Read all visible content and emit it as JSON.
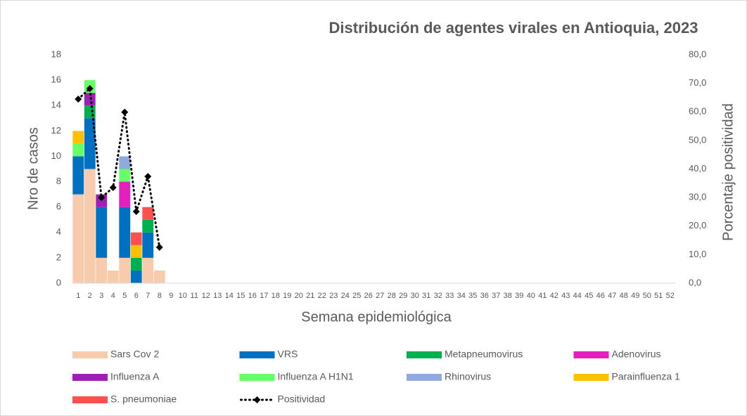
{
  "chart_data": {
    "type": "bar",
    "stacked": true,
    "title": "Distribución de agentes virales en Antioquia, 2023",
    "x_label": "Semana epidemiológica",
    "y_label": "Nro de casos",
    "y2_label": "Porcentaje positividad",
    "categories": [
      "1",
      "2",
      "3",
      "4",
      "5",
      "6",
      "7",
      "8",
      "9",
      "10",
      "11",
      "12",
      "13",
      "14",
      "15",
      "16",
      "17",
      "18",
      "19",
      "20",
      "21",
      "22",
      "23",
      "24",
      "25",
      "26",
      "27",
      "28",
      "29",
      "30",
      "31",
      "32",
      "33",
      "34",
      "35",
      "36",
      "37",
      "38",
      "39",
      "40",
      "41",
      "42",
      "43",
      "44",
      "45",
      "46",
      "47",
      "48",
      "49",
      "50",
      "51",
      "52"
    ],
    "ylim": [
      0,
      18
    ],
    "yticks": [
      0,
      2,
      4,
      6,
      8,
      10,
      12,
      14,
      16,
      18
    ],
    "y2lim": [
      0,
      80
    ],
    "y2ticks": [
      {
        "value": 0,
        "label": "0,0"
      },
      {
        "value": 10,
        "label": "10,0"
      },
      {
        "value": 20,
        "label": "20,0"
      },
      {
        "value": 30,
        "label": "30,0"
      },
      {
        "value": 40,
        "label": "40,0"
      },
      {
        "value": 50,
        "label": "50,0"
      },
      {
        "value": 60,
        "label": "60,0"
      },
      {
        "value": 70,
        "label": "70,0"
      },
      {
        "value": 80,
        "label": "80,0"
      }
    ],
    "grid": false,
    "series": [
      {
        "name": "Sars Cov 2",
        "color": "#f8cbad",
        "values": [
          7,
          9,
          2,
          1,
          2,
          0,
          2,
          1,
          null,
          null,
          null,
          null,
          null,
          null,
          null,
          null,
          null,
          null,
          null,
          null,
          null,
          null,
          null,
          null,
          null,
          null,
          null,
          null,
          null,
          null,
          null,
          null,
          null,
          null,
          null,
          null,
          null,
          null,
          null,
          null,
          null,
          null,
          null,
          null,
          null,
          null,
          null,
          null,
          null,
          null,
          null,
          null
        ]
      },
      {
        "name": "VRS",
        "color": "#0070c0",
        "values": [
          3,
          4,
          4,
          0,
          4,
          1,
          2,
          0,
          null,
          null,
          null,
          null,
          null,
          null,
          null,
          null,
          null,
          null,
          null,
          null,
          null,
          null,
          null,
          null,
          null,
          null,
          null,
          null,
          null,
          null,
          null,
          null,
          null,
          null,
          null,
          null,
          null,
          null,
          null,
          null,
          null,
          null,
          null,
          null,
          null,
          null,
          null,
          null,
          null,
          null,
          null,
          null
        ]
      },
      {
        "name": "Metapneumovirus",
        "color": "#00b050",
        "values": [
          0,
          1,
          0,
          0,
          0,
          1,
          1,
          0,
          null,
          null,
          null,
          null,
          null,
          null,
          null,
          null,
          null,
          null,
          null,
          null,
          null,
          null,
          null,
          null,
          null,
          null,
          null,
          null,
          null,
          null,
          null,
          null,
          null,
          null,
          null,
          null,
          null,
          null,
          null,
          null,
          null,
          null,
          null,
          null,
          null,
          null,
          null,
          null,
          null,
          null,
          null,
          null
        ]
      },
      {
        "name": "Adenovirus",
        "color": "#e41fbf",
        "values": [
          0,
          0,
          0,
          0,
          2,
          0,
          0,
          0,
          null,
          null,
          null,
          null,
          null,
          null,
          null,
          null,
          null,
          null,
          null,
          null,
          null,
          null,
          null,
          null,
          null,
          null,
          null,
          null,
          null,
          null,
          null,
          null,
          null,
          null,
          null,
          null,
          null,
          null,
          null,
          null,
          null,
          null,
          null,
          null,
          null,
          null,
          null,
          null,
          null,
          null,
          null,
          null
        ]
      },
      {
        "name": "Influenza A",
        "color": "#9e1fb5",
        "values": [
          0,
          1,
          1,
          0,
          0,
          0,
          0,
          0,
          null,
          null,
          null,
          null,
          null,
          null,
          null,
          null,
          null,
          null,
          null,
          null,
          null,
          null,
          null,
          null,
          null,
          null,
          null,
          null,
          null,
          null,
          null,
          null,
          null,
          null,
          null,
          null,
          null,
          null,
          null,
          null,
          null,
          null,
          null,
          null,
          null,
          null,
          null,
          null,
          null,
          null,
          null,
          null
        ]
      },
      {
        "name": "Influenza A H1N1",
        "color": "#66ff66",
        "values": [
          1,
          1,
          0,
          0,
          1,
          0,
          0,
          0,
          null,
          null,
          null,
          null,
          null,
          null,
          null,
          null,
          null,
          null,
          null,
          null,
          null,
          null,
          null,
          null,
          null,
          null,
          null,
          null,
          null,
          null,
          null,
          null,
          null,
          null,
          null,
          null,
          null,
          null,
          null,
          null,
          null,
          null,
          null,
          null,
          null,
          null,
          null,
          null,
          null,
          null,
          null,
          null
        ]
      },
      {
        "name": "Rhinovirus",
        "color": "#8faadc",
        "values": [
          0,
          0,
          0,
          0,
          1,
          0,
          0,
          0,
          null,
          null,
          null,
          null,
          null,
          null,
          null,
          null,
          null,
          null,
          null,
          null,
          null,
          null,
          null,
          null,
          null,
          null,
          null,
          null,
          null,
          null,
          null,
          null,
          null,
          null,
          null,
          null,
          null,
          null,
          null,
          null,
          null,
          null,
          null,
          null,
          null,
          null,
          null,
          null,
          null,
          null,
          null,
          null
        ]
      },
      {
        "name": "Parainfluenza 1",
        "color": "#ffc000",
        "values": [
          1,
          0,
          0,
          0,
          0,
          1,
          0,
          0,
          null,
          null,
          null,
          null,
          null,
          null,
          null,
          null,
          null,
          null,
          null,
          null,
          null,
          null,
          null,
          null,
          null,
          null,
          null,
          null,
          null,
          null,
          null,
          null,
          null,
          null,
          null,
          null,
          null,
          null,
          null,
          null,
          null,
          null,
          null,
          null,
          null,
          null,
          null,
          null,
          null,
          null,
          null,
          null
        ]
      },
      {
        "name": "S. pneumoniae",
        "color": "#ff5050",
        "values": [
          0,
          0,
          0,
          0,
          0,
          1,
          1,
          0,
          null,
          null,
          null,
          null,
          null,
          null,
          null,
          null,
          null,
          null,
          null,
          null,
          null,
          null,
          null,
          null,
          null,
          null,
          null,
          null,
          null,
          null,
          null,
          null,
          null,
          null,
          null,
          null,
          null,
          null,
          null,
          null,
          null,
          null,
          null,
          null,
          null,
          null,
          null,
          null,
          null,
          null,
          null,
          null
        ]
      },
      {
        "name": "Positividad",
        "color": "#000000",
        "type": "line",
        "axis": "y2",
        "values": [
          64.5,
          68.2,
          30.0,
          33.5,
          59.9,
          25.1,
          37.4,
          12.6,
          null,
          null,
          null,
          null,
          null,
          null,
          null,
          null,
          null,
          null,
          null,
          null,
          null,
          null,
          null,
          null,
          null,
          null,
          null,
          null,
          null,
          null,
          null,
          null,
          null,
          null,
          null,
          null,
          null,
          null,
          null,
          null,
          null,
          null,
          null,
          null,
          null,
          null,
          null,
          null,
          null,
          null,
          null,
          null
        ]
      }
    ]
  }
}
